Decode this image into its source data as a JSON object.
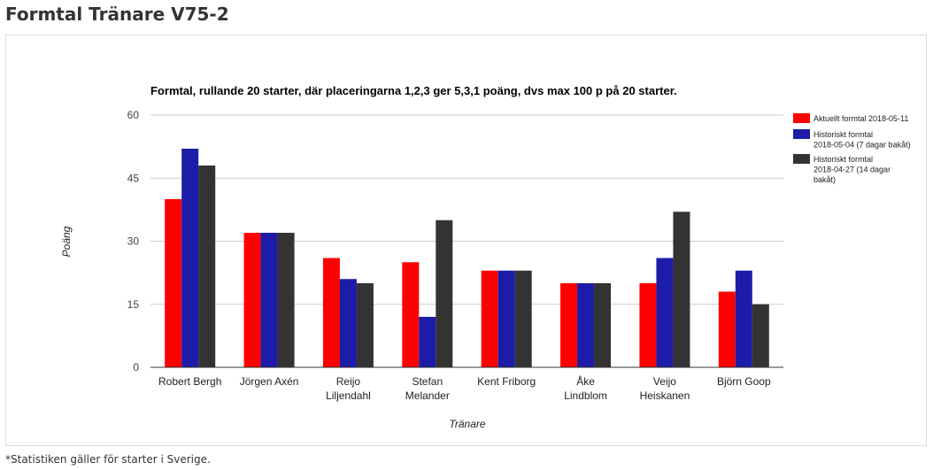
{
  "page": {
    "title": "Formtal Tränare V75-2",
    "footnote": "*Statistiken gäller för starter i Sverige."
  },
  "chart_data": {
    "type": "bar",
    "title": "Formtal, rullande 20 starter, där placeringarna 1,2,3 ger 5,3,1 poäng, dvs max 100 p på 20 starter.",
    "xlabel": "Tränare",
    "ylabel": "Poäng",
    "ylim": [
      0,
      60
    ],
    "yticks": [
      0,
      15,
      30,
      45,
      60
    ],
    "grid": true,
    "legend_position": "right",
    "categories": [
      [
        "Robert Bergh"
      ],
      [
        "Jörgen Axén"
      ],
      [
        "Reijo",
        "Liljendahl"
      ],
      [
        "Stefan",
        "Melander"
      ],
      [
        "Kent Friborg"
      ],
      [
        "Åke",
        "Lindblom"
      ],
      [
        "Veijo",
        "Heiskanen"
      ],
      [
        "Björn Goop"
      ]
    ],
    "series": [
      {
        "name": [
          "Aktuellt formtal 2018-05-11"
        ],
        "color": "#ff0000",
        "values": [
          40,
          32,
          26,
          25,
          23,
          20,
          20,
          18
        ]
      },
      {
        "name": [
          "Historiskt formtal",
          "2018-05-04 (7 dagar bakåt)"
        ],
        "color": "#1c1ca8",
        "values": [
          52,
          32,
          21,
          12,
          23,
          20,
          26,
          23
        ]
      },
      {
        "name": [
          "Historiskt formtal",
          "2018-04-27 (14 dagar",
          "bakåt)"
        ],
        "color": "#333333",
        "values": [
          48,
          32,
          20,
          35,
          23,
          20,
          37,
          15
        ]
      }
    ]
  }
}
